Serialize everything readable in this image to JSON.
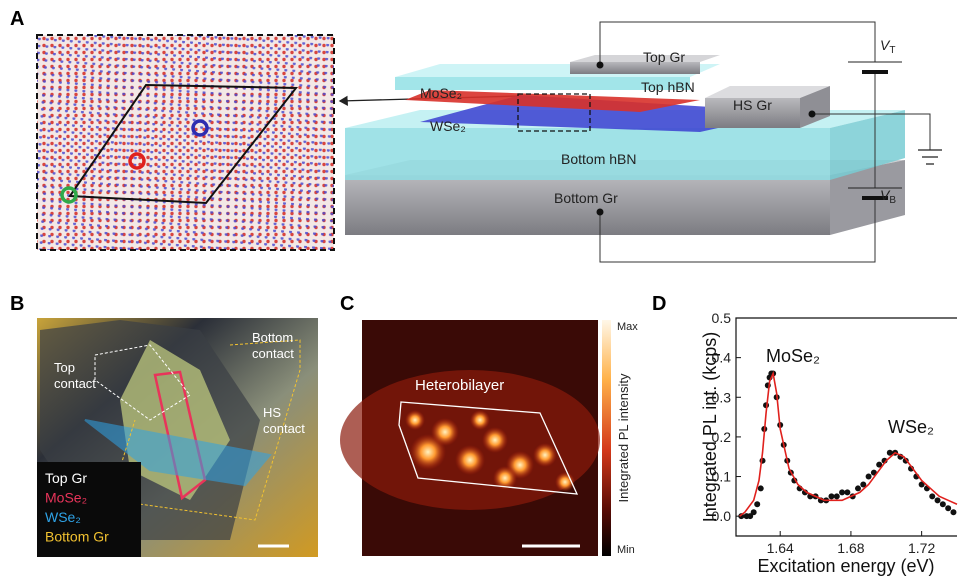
{
  "panels": {
    "a": {
      "label": "A",
      "top_gr": "Top Gr",
      "top_hbn": "Top hBN",
      "mose2": "MoSe₂",
      "wse2": "WSe₂",
      "hs_gr": "HS Gr",
      "bottom_hbn": "Bottom hBN",
      "bottom_gr": "Bottom Gr",
      "v_top": {
        "symbol": "V",
        "subscript": "T"
      },
      "v_bottom": {
        "symbol": "V",
        "subscript": "B"
      }
    },
    "b": {
      "label": "B",
      "top_contact": [
        "Top",
        "contact"
      ],
      "bottom_contact": [
        "Bottom",
        "contact"
      ],
      "hs_contact": [
        "HS",
        "contact"
      ],
      "legend": [
        {
          "text": "Top Gr",
          "color": "#ffffff"
        },
        {
          "text": "MoSe₂",
          "color": "#e8345a"
        },
        {
          "text": "WSe₂",
          "color": "#2fa3e6"
        },
        {
          "text": "Bottom Gr",
          "color": "#f2c230"
        }
      ]
    },
    "c": {
      "label": "C",
      "region": "Heterobilayer",
      "colorbar_title": "Integrated PL intensity",
      "colorbar_max": "Max",
      "colorbar_min": "Min"
    },
    "d": {
      "label": "D"
    }
  },
  "chart_data": {
    "type": "scatter",
    "xlabel": "Excitation energy (eV)",
    "ylabel": "Integrated PL int. (kcps)",
    "xlim": [
      1.615,
      1.74
    ],
    "ylim": [
      -0.05,
      0.5
    ],
    "xticks": [
      1.64,
      1.68,
      1.72
    ],
    "yticks": [
      {
        "value": 0,
        "label": "0.0"
      },
      0.1,
      0.2,
      0.3,
      0.4,
      0.5
    ],
    "annotations": [
      "MoSe₂",
      "WSe₂"
    ],
    "series": [
      {
        "style": "markers",
        "color": "#111111",
        "x": [
          1.618,
          1.621,
          1.623,
          1.625,
          1.627,
          1.629,
          1.63,
          1.631,
          1.632,
          1.633,
          1.634,
          1.635,
          1.636,
          1.638,
          1.64,
          1.642,
          1.644,
          1.646,
          1.648,
          1.651,
          1.654,
          1.657,
          1.66,
          1.663,
          1.666,
          1.669,
          1.672,
          1.675,
          1.678,
          1.681,
          1.684,
          1.687,
          1.69,
          1.693,
          1.696,
          1.699,
          1.702,
          1.705,
          1.708,
          1.711,
          1.714,
          1.717,
          1.72,
          1.723,
          1.726,
          1.729,
          1.732,
          1.735,
          1.738
        ],
        "values": [
          0.0,
          0.0,
          0.0,
          0.01,
          0.03,
          0.07,
          0.14,
          0.22,
          0.28,
          0.33,
          0.35,
          0.36,
          0.36,
          0.3,
          0.23,
          0.18,
          0.14,
          0.11,
          0.09,
          0.07,
          0.06,
          0.05,
          0.05,
          0.04,
          0.04,
          0.05,
          0.05,
          0.06,
          0.06,
          0.05,
          0.07,
          0.08,
          0.1,
          0.11,
          0.13,
          0.14,
          0.16,
          0.16,
          0.15,
          0.14,
          0.12,
          0.1,
          0.08,
          0.07,
          0.05,
          0.04,
          0.03,
          0.02,
          0.01
        ]
      },
      {
        "style": "line",
        "color": "#e0211d",
        "x": [
          1.617,
          1.62,
          1.625,
          1.628,
          1.63,
          1.632,
          1.634,
          1.636,
          1.638,
          1.64,
          1.645,
          1.65,
          1.655,
          1.66,
          1.665,
          1.67,
          1.675,
          1.68,
          1.685,
          1.69,
          1.695,
          1.7,
          1.705,
          1.71,
          1.715,
          1.72,
          1.725,
          1.73,
          1.735,
          1.74
        ],
        "values": [
          0.0,
          0.01,
          0.04,
          0.09,
          0.16,
          0.26,
          0.34,
          0.36,
          0.31,
          0.22,
          0.12,
          0.08,
          0.06,
          0.05,
          0.04,
          0.04,
          0.04,
          0.05,
          0.06,
          0.08,
          0.11,
          0.14,
          0.16,
          0.15,
          0.12,
          0.09,
          0.07,
          0.05,
          0.04,
          0.03
        ]
      }
    ]
  }
}
